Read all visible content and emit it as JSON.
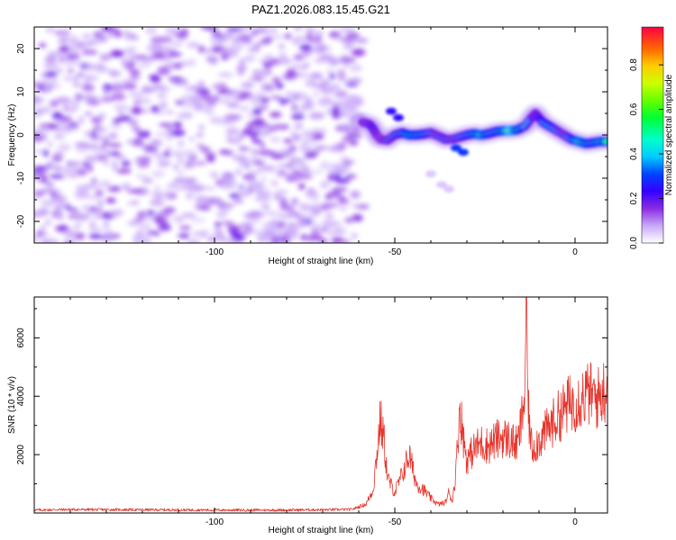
{
  "chart_data": [
    {
      "type": "heatmap",
      "title": "PAZ1.2026.083.15.45.G21",
      "xlabel": "Height of straight line (km)",
      "ylabel": "Frequency (Hz)",
      "xlim": [
        -150,
        9
      ],
      "ylim": [
        -25,
        25
      ],
      "xticks": [
        -100,
        -50,
        0
      ],
      "yticks": [
        -20,
        -10,
        0,
        10,
        20
      ],
      "colorbar": {
        "label": "Normalized spectral amplitude",
        "range": [
          0.0,
          0.97
        ],
        "ticks": [
          0.0,
          0.2,
          0.4,
          0.6,
          0.8
        ]
      },
      "noise_region_x": [
        -150,
        -59
      ],
      "ridge": [
        {
          "x": -59,
          "y": 3.0,
          "a": 0.3
        },
        {
          "x": -57,
          "y": 2.5,
          "a": 0.35
        },
        {
          "x": -56,
          "y": 1.5,
          "a": 0.4
        },
        {
          "x": -55,
          "y": 0.0,
          "a": 0.35
        },
        {
          "x": -54,
          "y": -1.0,
          "a": 0.3
        },
        {
          "x": -52,
          "y": -1.2,
          "a": 0.35
        },
        {
          "x": -50,
          "y": 0.0,
          "a": 0.4
        },
        {
          "x": -48,
          "y": 0.5,
          "a": 0.45
        },
        {
          "x": -46,
          "y": 0.0,
          "a": 0.6
        },
        {
          "x": -44,
          "y": 0.0,
          "a": 0.55
        },
        {
          "x": -42,
          "y": 0.2,
          "a": 0.5
        },
        {
          "x": -40,
          "y": 0.5,
          "a": 0.4
        },
        {
          "x": -38,
          "y": -0.2,
          "a": 0.35
        },
        {
          "x": -36,
          "y": -1.0,
          "a": 0.4
        },
        {
          "x": -34,
          "y": -1.0,
          "a": 0.35
        },
        {
          "x": -32,
          "y": -0.5,
          "a": 0.4
        },
        {
          "x": -30,
          "y": 0.0,
          "a": 0.45
        },
        {
          "x": -28,
          "y": 0.3,
          "a": 0.55
        },
        {
          "x": -26,
          "y": 0.0,
          "a": 0.7
        },
        {
          "x": -24,
          "y": 0.3,
          "a": 0.5
        },
        {
          "x": -22,
          "y": 0.8,
          "a": 0.5
        },
        {
          "x": -20,
          "y": 1.0,
          "a": 0.6
        },
        {
          "x": -18,
          "y": 1.0,
          "a": 0.8
        },
        {
          "x": -16,
          "y": 1.2,
          "a": 0.6
        },
        {
          "x": -14,
          "y": 2.0,
          "a": 0.45
        },
        {
          "x": -12,
          "y": 4.0,
          "a": 0.4
        },
        {
          "x": -11,
          "y": 5.0,
          "a": 0.35
        },
        {
          "x": -10,
          "y": 4.0,
          "a": 0.4
        },
        {
          "x": -9,
          "y": 3.0,
          "a": 0.45
        },
        {
          "x": -7,
          "y": 2.0,
          "a": 0.5
        },
        {
          "x": -5,
          "y": 1.0,
          "a": 0.4
        },
        {
          "x": -3,
          "y": 0.0,
          "a": 0.35
        },
        {
          "x": -1,
          "y": -1.0,
          "a": 0.45
        },
        {
          "x": 1,
          "y": -1.5,
          "a": 0.7
        },
        {
          "x": 3,
          "y": -2.0,
          "a": 0.6
        },
        {
          "x": 5,
          "y": -1.8,
          "a": 0.5
        },
        {
          "x": 7,
          "y": -1.5,
          "a": 0.65
        },
        {
          "x": 9,
          "y": -1.5,
          "a": 0.5
        }
      ],
      "side_features": [
        {
          "x": -51,
          "y": 5.5,
          "a": 0.25
        },
        {
          "x": -49,
          "y": 4.0,
          "a": 0.25
        },
        {
          "x": -33,
          "y": -3.0,
          "a": 0.3
        },
        {
          "x": -31,
          "y": -4.0,
          "a": 0.3
        },
        {
          "x": -40,
          "y": -9.0,
          "a": 0.05
        },
        {
          "x": -37,
          "y": -11.5,
          "a": 0.05
        },
        {
          "x": -35,
          "y": -12.5,
          "a": 0.05
        }
      ]
    },
    {
      "type": "line",
      "xlabel": "Height of straight line (km)",
      "ylabel": "SNR (10 * v/v)",
      "xlim": [
        -150,
        9
      ],
      "ylim": [
        0,
        7400
      ],
      "xticks": [
        -100,
        -50,
        0
      ],
      "yticks": [
        2000,
        4000,
        6000
      ],
      "series": [
        {
          "name": "SNR",
          "color": "#e8342c",
          "x": [
            -150,
            -140,
            -120,
            -100,
            -80,
            -62,
            -58,
            -56,
            -55,
            -54,
            -53,
            -52,
            -50,
            -48,
            -46,
            -45,
            -44,
            -42,
            -40,
            -38,
            -36,
            -35,
            -34,
            -33,
            -32,
            -31,
            -30,
            -29,
            -28,
            -26,
            -24,
            -22,
            -20,
            -18,
            -16,
            -15,
            -14,
            -13.5,
            -13,
            -12,
            -10,
            -8,
            -6,
            -4,
            -2,
            0,
            2,
            4,
            6,
            8,
            9
          ],
          "y": [
            100,
            120,
            110,
            100,
            100,
            120,
            300,
            800,
            2000,
            3200,
            2500,
            1200,
            700,
            1300,
            2000,
            1500,
            1000,
            800,
            500,
            300,
            350,
            700,
            400,
            1500,
            3700,
            2600,
            1800,
            2000,
            2200,
            2400,
            2300,
            2500,
            2600,
            2500,
            2300,
            3000,
            4000,
            7300,
            3500,
            2200,
            2500,
            2800,
            3100,
            3400,
            3700,
            3800,
            4000,
            4100,
            3900,
            4200,
            4300
          ]
        }
      ]
    }
  ]
}
